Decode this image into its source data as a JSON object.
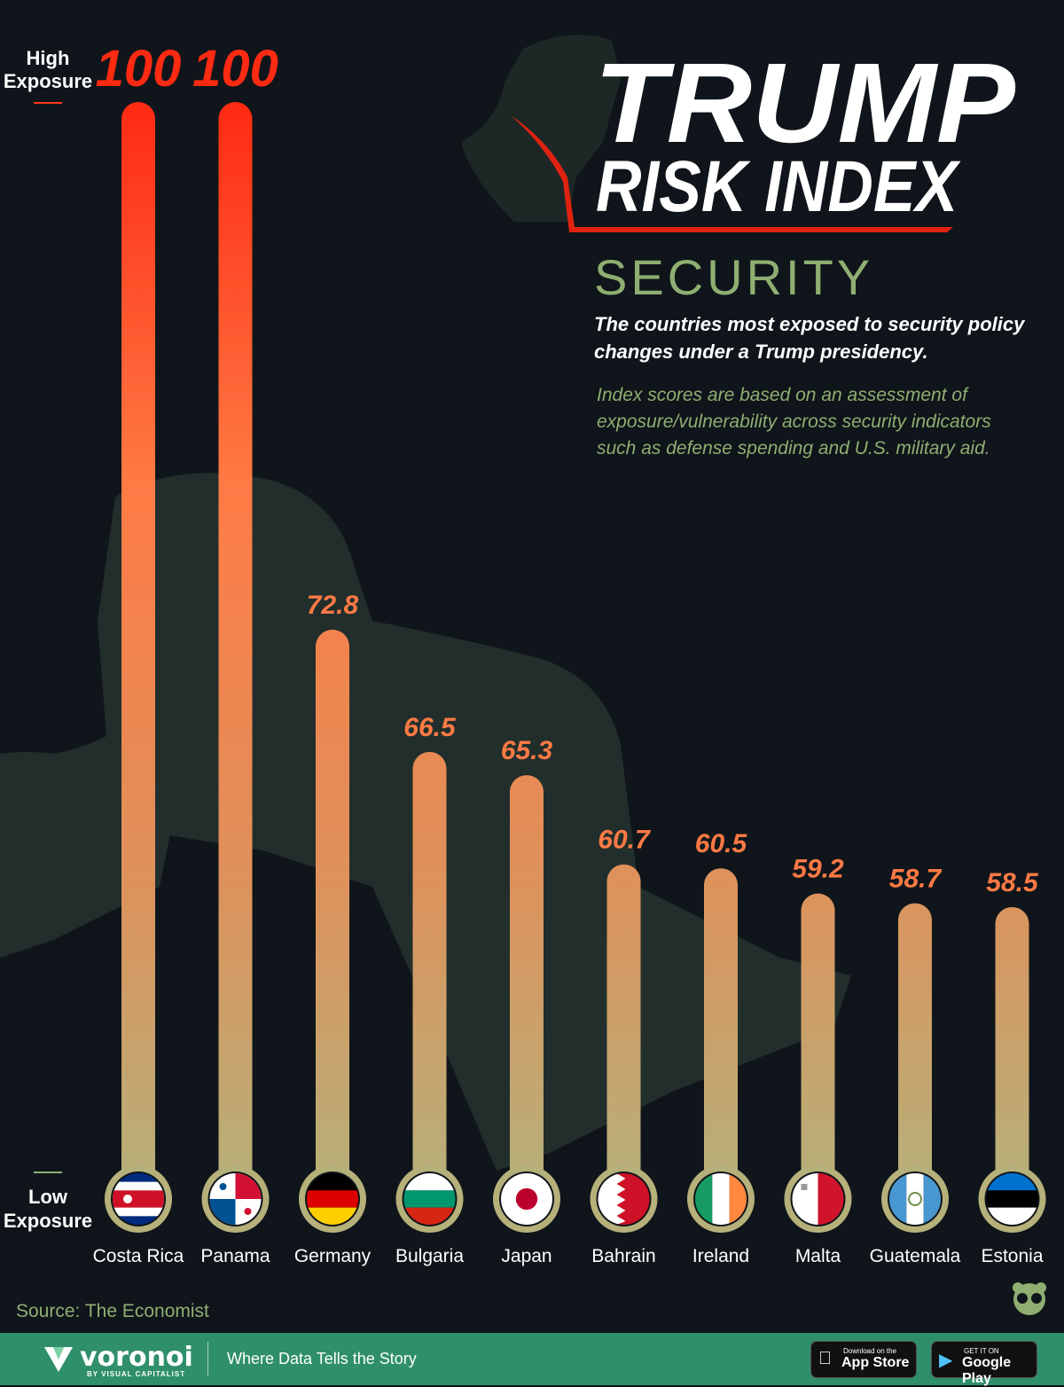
{
  "title": {
    "line1": "TRUMP",
    "line2": "RISK INDEX"
  },
  "category": "SECURITY",
  "subtitle": "The countries most exposed to security policy changes under a Trump presidency.",
  "description": [
    "Index scores are based on an assessment of",
    "exposure/vulnerability across security indicators",
    "such as defense spending and U.S. military aid."
  ],
  "axis": {
    "high": [
      "High",
      "Exposure"
    ],
    "low": [
      "Low",
      "Exposure"
    ]
  },
  "source": "Source: The Economist",
  "footer": {
    "brand": "voronoi",
    "brand_sub": "BY VISUAL CAPITALIST",
    "tagline": "Where Data Tells the Story",
    "app_store": {
      "small": "Download on the",
      "big": "App Store"
    },
    "google_play": {
      "small": "GET IT ON",
      "big": "Google Play"
    }
  },
  "colors": {
    "background": "#0f151a",
    "bar_top": "#ff2a12",
    "bar_bottom": "#b6b07a",
    "accent_green": "#8fae72",
    "footer": "#2f8f6a"
  },
  "chart_data": {
    "type": "bar",
    "categories": [
      "Costa Rica",
      "Panama",
      "Germany",
      "Bulgaria",
      "Japan",
      "Bahrain",
      "Ireland",
      "Malta",
      "Guatemala",
      "Estonia"
    ],
    "values": [
      100,
      100,
      72.8,
      66.5,
      65.3,
      60.7,
      60.5,
      59.2,
      58.7,
      58.5
    ],
    "value_labels": [
      "100",
      "100",
      "72.8",
      "66.5",
      "65.3",
      "60.7",
      "60.5",
      "59.2",
      "58.7",
      "58.5"
    ],
    "ylim": [
      0,
      100
    ],
    "grid": false,
    "legend": "none"
  }
}
